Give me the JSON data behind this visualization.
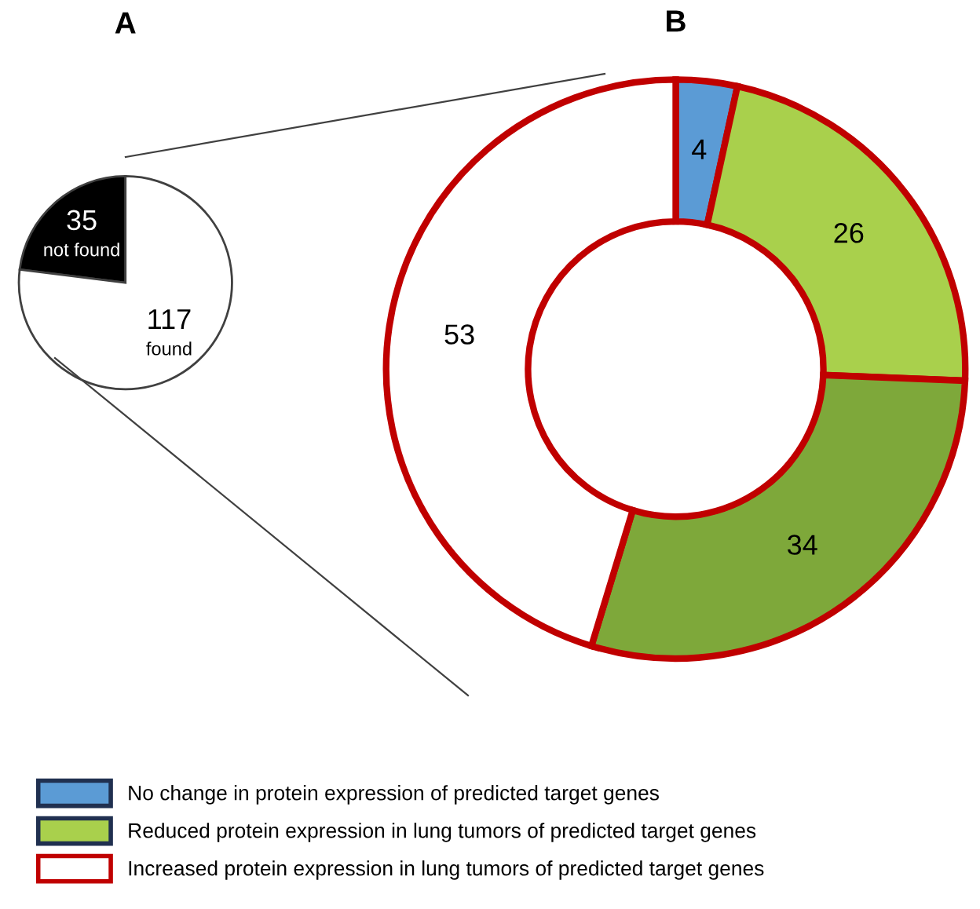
{
  "chart_data": [
    {
      "type": "pie",
      "title": "A",
      "categories": [
        "not found",
        "found"
      ],
      "values": [
        35,
        117
      ],
      "colors": [
        "#000000",
        "#ffffff"
      ],
      "data_labels": true
    },
    {
      "type": "donut",
      "title": "B",
      "categories": [
        "No change in protein expression of predicted target genes",
        "Reduced protein expression in lung tumors of predicted target genes",
        null,
        "Increased protein expression in lung tumors of predicted target genes"
      ],
      "values": [
        4,
        26,
        34,
        53
      ],
      "colors": [
        "#5b9bd5",
        "#a9d04c",
        "#7ea83a",
        "#ffffff"
      ],
      "data_labels": true,
      "legend": "bottom"
    }
  ]
}
